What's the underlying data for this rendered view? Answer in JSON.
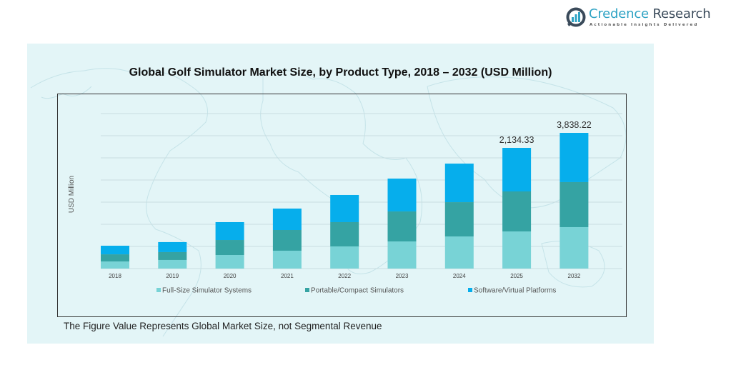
{
  "brand": {
    "name_part1": "Credence",
    "name_part2": " Research",
    "tagline": "Actionable Insights Delivered",
    "icon": "bar-chart-in-circle-logo-icon"
  },
  "note": "The Figure Value Represents Global Market Size, not Segmental Revenue",
  "colors": {
    "full_size": "#78d3d6",
    "portable": "#35a3a3",
    "software": "#06aeec",
    "panel_bg": "#e3f5f7",
    "grid": "#c9dde0"
  },
  "chart_data": {
    "type": "bar",
    "stacked": true,
    "title": "Global Golf Simulator Market Size, by Product Type, 2018 – 2032 (USD Million)",
    "xlabel": "",
    "ylabel": "USD Million",
    "grid": true,
    "legend_position": "bottom",
    "categories": [
      "2018",
      "2019",
      "2020",
      "2021",
      "2022",
      "2023",
      "2024",
      "2025",
      "2032"
    ],
    "series": [
      {
        "name": "Full-Size Simulator Systems",
        "values": [
          126,
          152,
          240,
          316,
          392,
          480,
          568,
          657,
          1172
        ]
      },
      {
        "name": "Portable/Compact Simulators",
        "values": [
          126,
          139,
          265,
          366,
          429,
          530,
          606,
          707,
          1273
        ]
      },
      {
        "name": "Software/Virtual Platforms",
        "values": [
          152,
          177,
          316,
          379,
          480,
          581,
          682,
          770.33,
          1393.22
        ]
      }
    ],
    "totals": [
      404,
      468,
      821,
      1061,
      1301,
      1591,
      1856,
      2134.33,
      3838.22
    ],
    "data_labels": [
      {
        "category": "2025",
        "text": "2,134.33"
      },
      {
        "category": "2032",
        "text": "3,838.22"
      }
    ]
  }
}
